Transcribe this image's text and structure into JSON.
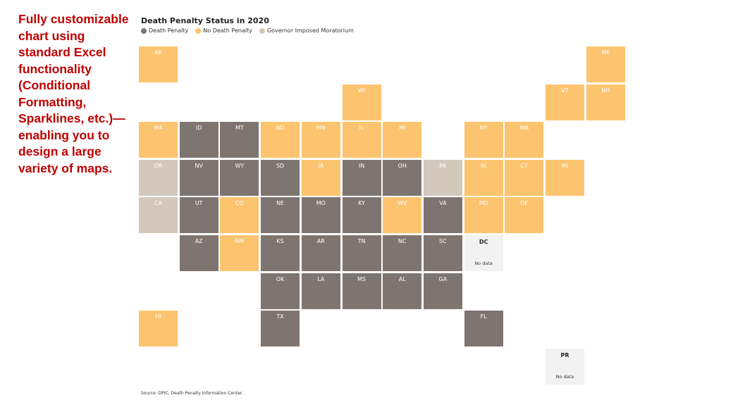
{
  "side_note": "Fully customizable\nchart using\nstandard Excel\nfunctionality\n(Conditional\nFormatting,\nSparklines, etc.)—\nenabling you to\ndesign a large\nvariety of maps.",
  "map": {
    "title": "Death Penalty Status in 2020",
    "legend": [
      {
        "key": "dp",
        "label": "Death Penalty",
        "color": "#7f7570"
      },
      {
        "key": "ndp",
        "label": "No Death Penalty",
        "color": "#fcc46f"
      },
      {
        "key": "gim",
        "label": "Governor Imposed Moratorium",
        "color": "#d3c8bc"
      }
    ],
    "nodata_color": "#f2f2f2",
    "nodata_label": "No data",
    "tiles": [
      {
        "code": "AK",
        "status": "ndp",
        "col": 0,
        "row": 0
      },
      {
        "code": "ME",
        "status": "ndp",
        "col": 11,
        "row": 0
      },
      {
        "code": "WI",
        "status": "ndp",
        "col": 5,
        "row": 1
      },
      {
        "code": "VT",
        "status": "ndp",
        "col": 10,
        "row": 1
      },
      {
        "code": "NH",
        "status": "ndp",
        "col": 11,
        "row": 1
      },
      {
        "code": "WA",
        "status": "ndp",
        "col": 0,
        "row": 2
      },
      {
        "code": "ID",
        "status": "dp",
        "col": 1,
        "row": 2
      },
      {
        "code": "MT",
        "status": "dp",
        "col": 2,
        "row": 2
      },
      {
        "code": "ND",
        "status": "ndp",
        "col": 3,
        "row": 2
      },
      {
        "code": "MN",
        "status": "ndp",
        "col": 4,
        "row": 2
      },
      {
        "code": "IL",
        "status": "ndp",
        "col": 5,
        "row": 2
      },
      {
        "code": "MI",
        "status": "ndp",
        "col": 6,
        "row": 2
      },
      {
        "code": "NY",
        "status": "ndp",
        "col": 8,
        "row": 2
      },
      {
        "code": "MA",
        "status": "ndp",
        "col": 9,
        "row": 2
      },
      {
        "code": "OR",
        "status": "gim",
        "col": 0,
        "row": 3
      },
      {
        "code": "NV",
        "status": "dp",
        "col": 1,
        "row": 3
      },
      {
        "code": "WY",
        "status": "dp",
        "col": 2,
        "row": 3
      },
      {
        "code": "SD",
        "status": "dp",
        "col": 3,
        "row": 3
      },
      {
        "code": "IA",
        "status": "ndp",
        "col": 4,
        "row": 3
      },
      {
        "code": "IN",
        "status": "dp",
        "col": 5,
        "row": 3
      },
      {
        "code": "OH",
        "status": "dp",
        "col": 6,
        "row": 3
      },
      {
        "code": "PA",
        "status": "gim",
        "col": 7,
        "row": 3
      },
      {
        "code": "NJ",
        "status": "ndp",
        "col": 8,
        "row": 3
      },
      {
        "code": "CT",
        "status": "ndp",
        "col": 9,
        "row": 3
      },
      {
        "code": "RI",
        "status": "ndp",
        "col": 10,
        "row": 3
      },
      {
        "code": "CA",
        "status": "gim",
        "col": 0,
        "row": 4
      },
      {
        "code": "UT",
        "status": "dp",
        "col": 1,
        "row": 4
      },
      {
        "code": "CO",
        "status": "ndp",
        "col": 2,
        "row": 4
      },
      {
        "code": "NE",
        "status": "dp",
        "col": 3,
        "row": 4
      },
      {
        "code": "MO",
        "status": "dp",
        "col": 4,
        "row": 4
      },
      {
        "code": "KY",
        "status": "dp",
        "col": 5,
        "row": 4
      },
      {
        "code": "WV",
        "status": "ndp",
        "col": 6,
        "row": 4
      },
      {
        "code": "VA",
        "status": "dp",
        "col": 7,
        "row": 4
      },
      {
        "code": "MD",
        "status": "ndp",
        "col": 8,
        "row": 4
      },
      {
        "code": "DE",
        "status": "ndp",
        "col": 9,
        "row": 4
      },
      {
        "code": "AZ",
        "status": "dp",
        "col": 1,
        "row": 5
      },
      {
        "code": "NM",
        "status": "ndp",
        "col": 2,
        "row": 5
      },
      {
        "code": "KS",
        "status": "dp",
        "col": 3,
        "row": 5
      },
      {
        "code": "AR",
        "status": "dp",
        "col": 4,
        "row": 5
      },
      {
        "code": "TN",
        "status": "dp",
        "col": 5,
        "row": 5
      },
      {
        "code": "NC",
        "status": "dp",
        "col": 6,
        "row": 5
      },
      {
        "code": "SC",
        "status": "dp",
        "col": 7,
        "row": 5
      },
      {
        "code": "DC",
        "status": "nodata",
        "col": 8,
        "row": 5
      },
      {
        "code": "OK",
        "status": "dp",
        "col": 3,
        "row": 6
      },
      {
        "code": "LA",
        "status": "dp",
        "col": 4,
        "row": 6
      },
      {
        "code": "MS",
        "status": "dp",
        "col": 5,
        "row": 6
      },
      {
        "code": "AL",
        "status": "dp",
        "col": 6,
        "row": 6
      },
      {
        "code": "GA",
        "status": "dp",
        "col": 7,
        "row": 6
      },
      {
        "code": "HI",
        "status": "ndp",
        "col": 0,
        "row": 7
      },
      {
        "code": "TX",
        "status": "dp",
        "col": 3,
        "row": 7
      },
      {
        "code": "FL",
        "status": "dp",
        "col": 8,
        "row": 7
      },
      {
        "code": "PR",
        "status": "nodata",
        "col": 10,
        "row": 8
      }
    ],
    "source": "Source: DPIC, Death Penalty Information Center."
  }
}
